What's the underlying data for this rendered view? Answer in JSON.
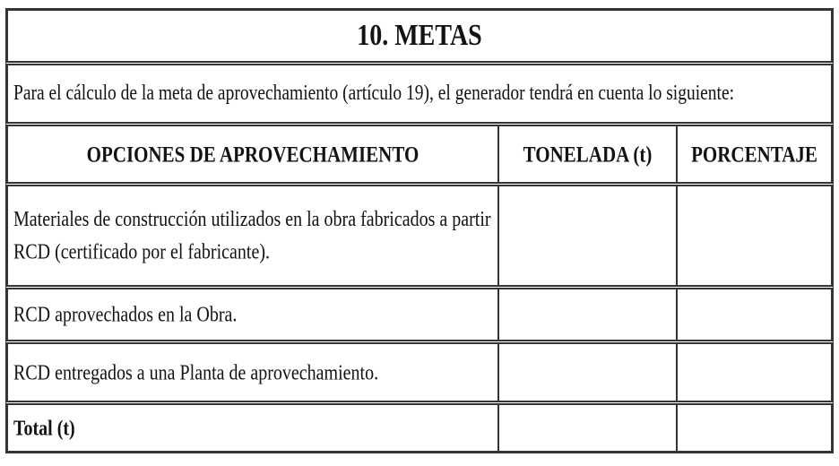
{
  "colors": {
    "border": "#343434",
    "text": "#131313",
    "page_background": "#ffffff"
  },
  "section": {
    "title": "10. METAS",
    "intro": "Para el cálculo de la meta de aprovechamiento (artículo 19), el generador tendrá en cuenta lo siguiente:"
  },
  "table": {
    "columns": [
      "OPCIONES DE APROVECHAMIENTO",
      "TONELADA (t)",
      "PORCENTAJE"
    ],
    "rows": [
      {
        "opcion": "Materiales de construcción utilizados en la obra fabricados a partir RCD (certificado por el fabricante).",
        "tonelada": "",
        "porcentaje": ""
      },
      {
        "opcion": "RCD aprovechados en la Obra.",
        "tonelada": "",
        "porcentaje": ""
      },
      {
        "opcion": "RCD entregados a una Planta de aprovechamiento.",
        "tonelada": "",
        "porcentaje": ""
      },
      {
        "opcion": "Total (t)",
        "tonelada": "",
        "porcentaje": ""
      }
    ]
  }
}
